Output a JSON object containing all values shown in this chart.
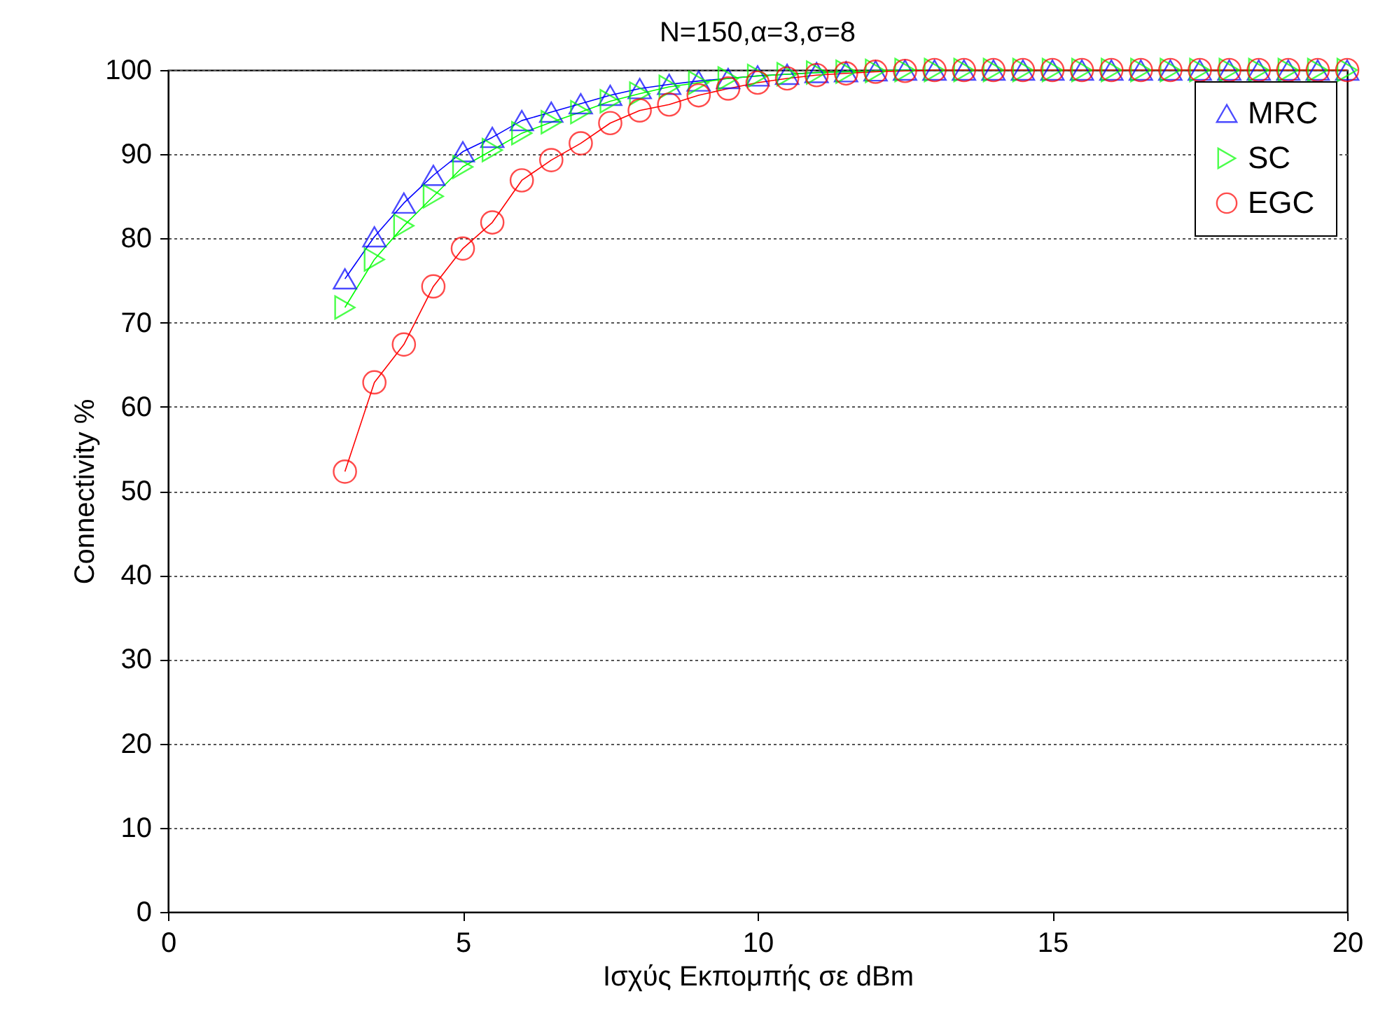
{
  "chart_data": {
    "type": "line",
    "title": "N=150,α=3,σ=8",
    "xlabel": "Ισχύς Εκπομπής σε dBm",
    "ylabel": "Connectivity %",
    "x": [
      3,
      3.5,
      4,
      4.5,
      5,
      5.5,
      6,
      6.5,
      7,
      7.5,
      8,
      8.5,
      9,
      9.5,
      10,
      10.5,
      11,
      11.5,
      12,
      12.5,
      13,
      13.5,
      14,
      14.5,
      15,
      15.5,
      16,
      16.5,
      17,
      17.5,
      18,
      18.5,
      19,
      19.5,
      20
    ],
    "series": [
      {
        "name": "MRC",
        "color": "#0000ff",
        "marker": "triangle",
        "values": [
          75.2,
          80.2,
          84.2,
          87.5,
          90.3,
          92,
          94,
          95,
          96,
          97,
          97.8,
          98.3,
          98.7,
          99,
          99.3,
          99.5,
          99.7,
          99.8,
          99.9,
          100,
          100,
          100,
          100,
          100,
          100,
          100,
          100,
          100,
          100,
          100,
          100,
          100,
          100,
          100,
          100
        ]
      },
      {
        "name": "SC",
        "color": "#00ff00",
        "marker": "triangle-right",
        "values": [
          71.8,
          77.5,
          81.5,
          85,
          88.5,
          90.5,
          92.5,
          93.8,
          95,
          96.3,
          97.2,
          98,
          98.5,
          99,
          99.3,
          99.5,
          99.7,
          99.8,
          99.9,
          100,
          100,
          100,
          100,
          100,
          100,
          100,
          100,
          100,
          100,
          100,
          100,
          100,
          100,
          100,
          100
        ]
      },
      {
        "name": "EGC",
        "color": "#ff0000",
        "marker": "circle",
        "values": [
          52.3,
          62.9,
          67.4,
          74.3,
          78.8,
          81.9,
          86.9,
          89.3,
          91.3,
          93.7,
          95.2,
          95.9,
          97,
          97.8,
          98.5,
          99,
          99.4,
          99.6,
          99.8,
          99.9,
          100,
          100,
          100,
          100,
          100,
          100,
          100,
          100,
          100,
          100,
          100,
          100,
          100,
          100,
          100
        ]
      }
    ],
    "xlim": [
      0,
      20
    ],
    "xticks": [
      0,
      5,
      10,
      15,
      20
    ],
    "ylim": [
      0,
      100
    ],
    "yticks": [
      0,
      10,
      20,
      30,
      40,
      50,
      60,
      70,
      80,
      90,
      100
    ],
    "grid": "y",
    "legend": "top right"
  }
}
